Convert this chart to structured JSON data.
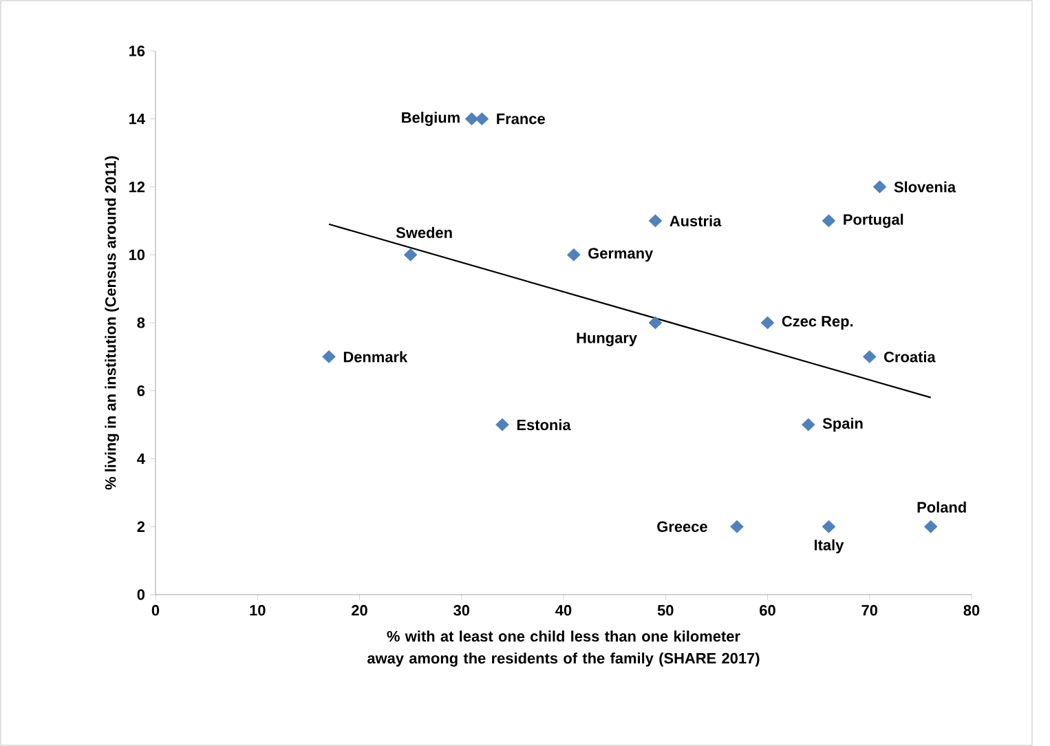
{
  "chart_data": {
    "type": "scatter",
    "xlabel": "% with at least one child less than one kilometer away among the residents of the family (SHARE 2017)",
    "ylabel": "% living in an institution (Census around 2011)",
    "xlim": [
      0,
      80
    ],
    "xticks": [
      0,
      10,
      20,
      30,
      40,
      50,
      60,
      70,
      80
    ],
    "ylim": [
      0,
      16
    ],
    "yticks": [
      0,
      2,
      4,
      6,
      8,
      10,
      12,
      14,
      16
    ],
    "grid": false,
    "marker": "diamond",
    "series": [
      {
        "color": "#4f81bd",
        "x": [
          31,
          32,
          25,
          17,
          34,
          41,
          49,
          49,
          60,
          70,
          71,
          66,
          64,
          57,
          66,
          76
        ],
        "values": [
          14,
          14,
          10,
          7,
          5,
          10,
          11,
          8,
          8,
          7,
          12,
          11,
          5,
          2,
          2,
          2
        ]
      },
      {
        "type": "line",
        "color": "#000000",
        "marker": "none",
        "line_style": "solid",
        "x": [
          17,
          76
        ],
        "values": [
          10.9,
          5.8
        ]
      }
    ],
    "annotations": [
      {
        "text": "Belgium",
        "x": 31,
        "y": 14
      },
      {
        "text": "France",
        "x": 32,
        "y": 14
      },
      {
        "text": "Sweden",
        "x": 25,
        "y": 10
      },
      {
        "text": "Denmark",
        "x": 17,
        "y": 7
      },
      {
        "text": "Estonia",
        "x": 34,
        "y": 5
      },
      {
        "text": "Germany",
        "x": 41,
        "y": 10
      },
      {
        "text": "Austria",
        "x": 49,
        "y": 11
      },
      {
        "text": "Hungary",
        "x": 49,
        "y": 8
      },
      {
        "text": "Czec Rep.",
        "x": 60,
        "y": 8
      },
      {
        "text": "Croatia",
        "x": 70,
        "y": 7
      },
      {
        "text": "Slovenia",
        "x": 71,
        "y": 12
      },
      {
        "text": "Portugal",
        "x": 66,
        "y": 11
      },
      {
        "text": "Spain",
        "x": 64,
        "y": 5
      },
      {
        "text": "Greece",
        "x": 57,
        "y": 2
      },
      {
        "text": "Italy",
        "x": 66,
        "y": 2
      },
      {
        "text": "Poland",
        "x": 76,
        "y": 2
      }
    ]
  }
}
